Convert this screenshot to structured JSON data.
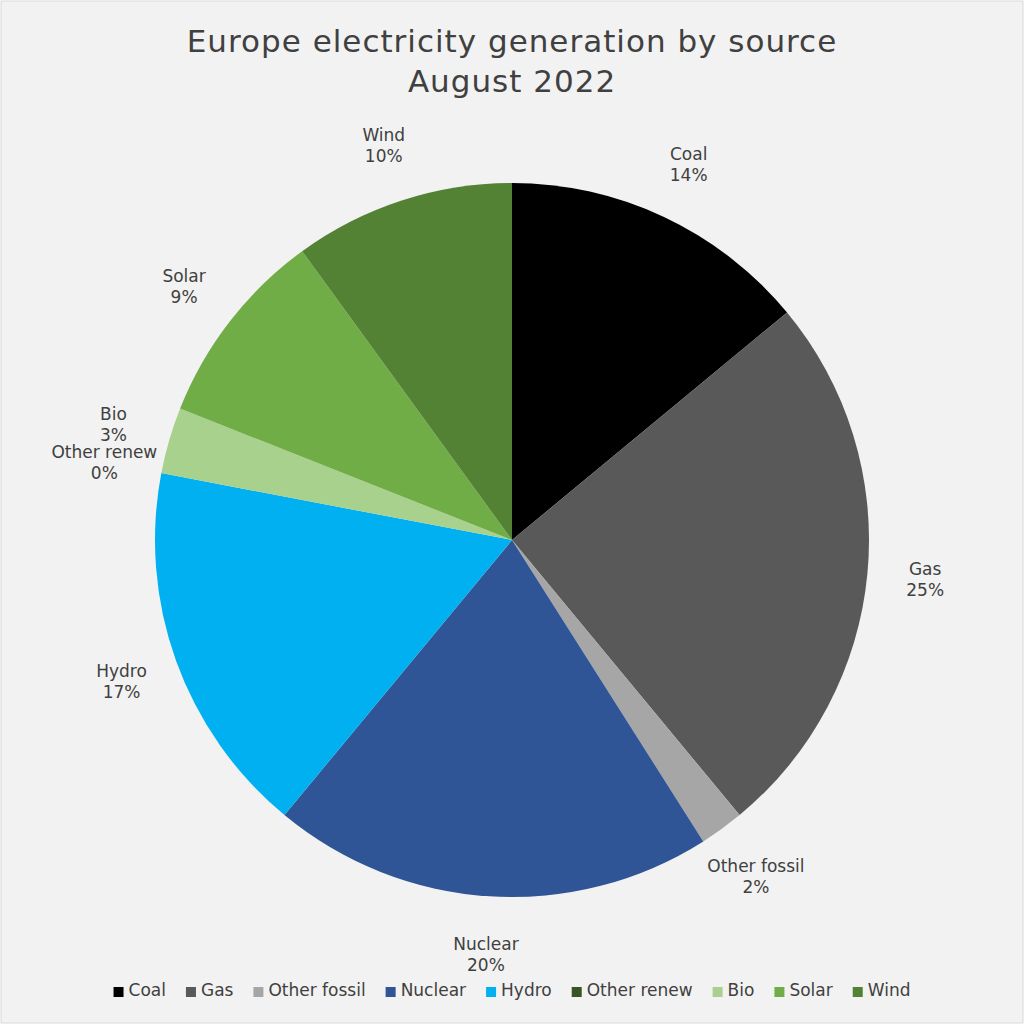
{
  "chart_data": {
    "type": "pie",
    "title": "Europe electricity generation by source",
    "subtitle": "August 2022",
    "categories": [
      "Coal",
      "Gas",
      "Other fossil",
      "Nuclear",
      "Hydro",
      "Other renew",
      "Bio",
      "Solar",
      "Wind"
    ],
    "values": [
      14,
      25,
      2,
      20,
      17,
      0,
      3,
      9,
      10
    ],
    "value_labels": [
      "14%",
      "25%",
      "2%",
      "20%",
      "17%",
      "0%",
      "3%",
      "9%",
      "10%"
    ],
    "colors": [
      "#000000",
      "#595959",
      "#a6a6a6",
      "#2f5597",
      "#00b0f0",
      "#375623",
      "#a9d18e",
      "#70ad47",
      "#548235"
    ],
    "data_labels": true,
    "legend": "bottom"
  }
}
